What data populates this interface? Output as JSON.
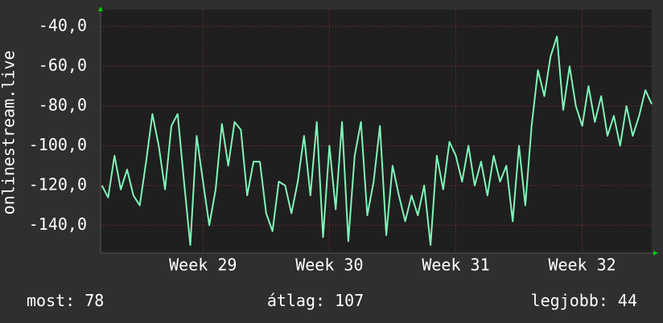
{
  "chart_data": {
    "type": "line",
    "y_label": "onlinestream.live",
    "x": [
      28.2,
      28.25,
      28.3,
      28.35,
      28.4,
      28.45,
      28.5,
      28.55,
      28.6,
      28.65,
      28.7,
      28.75,
      28.8,
      28.85,
      28.9,
      28.95,
      29.0,
      29.05,
      29.1,
      29.15,
      29.2,
      29.25,
      29.3,
      29.35,
      29.4,
      29.45,
      29.5,
      29.55,
      29.6,
      29.65,
      29.7,
      29.75,
      29.8,
      29.85,
      29.9,
      29.95,
      30.0,
      30.05,
      30.1,
      30.15,
      30.2,
      30.25,
      30.3,
      30.35,
      30.4,
      30.45,
      30.5,
      30.55,
      30.6,
      30.65,
      30.7,
      30.75,
      30.8,
      30.85,
      30.9,
      30.95,
      31.0,
      31.05,
      31.1,
      31.15,
      31.2,
      31.25,
      31.3,
      31.35,
      31.4,
      31.45,
      31.5,
      31.55,
      31.6,
      31.65,
      31.7,
      31.75,
      31.8,
      31.85,
      31.9,
      31.95,
      32.0,
      32.05,
      32.1,
      32.15,
      32.2,
      32.25,
      32.3,
      32.35,
      32.4,
      32.45,
      32.5,
      32.55
    ],
    "series": [
      {
        "color": "#80f5b8",
        "values": [
          -120,
          -126,
          -105,
          -122,
          -112,
          -125,
          -130,
          -108,
          -84,
          -100,
          -122,
          -90,
          -84,
          -118,
          -150,
          -95,
          -118,
          -140,
          -122,
          -89,
          -110,
          -88,
          -92,
          -125,
          -108,
          -108,
          -134,
          -143,
          -118,
          -120,
          -134,
          -118,
          -95,
          -125,
          -88,
          -146,
          -100,
          -132,
          -88,
          -148,
          -105,
          -88,
          -135,
          -118,
          -90,
          -145,
          -110,
          -125,
          -138,
          -125,
          -135,
          -120,
          -150,
          -105,
          -122,
          -98,
          -105,
          -118,
          -100,
          -120,
          -108,
          -125,
          -105,
          -118,
          -110,
          -138,
          -100,
          -130,
          -90,
          -62,
          -75,
          -55,
          -45,
          -82,
          -60,
          -80,
          -90,
          -70,
          -88,
          -75,
          -95,
          -85,
          -100,
          -80,
          -95,
          -85,
          -72,
          -79
        ]
      }
    ],
    "xlim": [
      28.19,
      32.55
    ],
    "xticks": [
      {
        "value": 29,
        "label": "Week 29"
      },
      {
        "value": 30,
        "label": "Week 30"
      },
      {
        "value": 31,
        "label": "Week 31"
      },
      {
        "value": 32,
        "label": "Week 32"
      }
    ],
    "ylim": [
      -154,
      -31.5
    ],
    "yticks": [
      {
        "value": -140,
        "label": "-140,0"
      },
      {
        "value": -120,
        "label": "-120,0"
      },
      {
        "value": -100,
        "label": "-100,0"
      },
      {
        "value": -80,
        "label": "-80,0"
      },
      {
        "value": -60,
        "label": "-60,0"
      },
      {
        "value": -40,
        "label": "-40,0"
      }
    ],
    "grid": true,
    "stats": [
      {
        "label": "most:",
        "value": 78
      },
      {
        "label": "átlag:",
        "value": 107
      },
      {
        "label": "legjobb:",
        "value": 44
      }
    ]
  }
}
